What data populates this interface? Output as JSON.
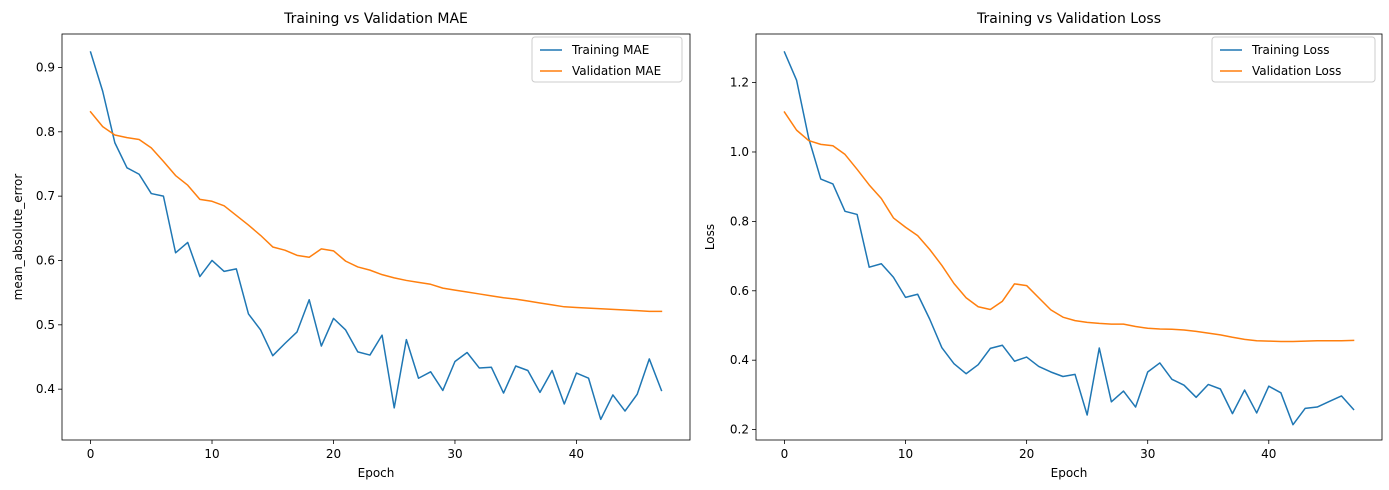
{
  "chart_data": [
    {
      "type": "line",
      "title": "Training vs Validation MAE",
      "xlabel": "Epoch",
      "ylabel": "mean_absolute_error",
      "xlim": [
        -2.35,
        49.35
      ],
      "ylim": [
        0.321,
        0.952
      ],
      "xticks": [
        0,
        10,
        20,
        30,
        40
      ],
      "yticks": [
        0.4,
        0.5,
        0.6,
        0.7,
        0.8,
        0.9
      ],
      "ytick_labels": [
        "0.4",
        "0.5",
        "0.6",
        "0.7",
        "0.8",
        "0.9"
      ],
      "grid": false,
      "legend_position": "top-right",
      "x": [
        0,
        1,
        2,
        3,
        4,
        5,
        6,
        7,
        8,
        9,
        10,
        11,
        12,
        13,
        14,
        15,
        16,
        17,
        18,
        19,
        20,
        21,
        22,
        23,
        24,
        25,
        26,
        27,
        28,
        29,
        30,
        31,
        32,
        33,
        34,
        35,
        36,
        37,
        38,
        39,
        40,
        41,
        42,
        43,
        44,
        45,
        46,
        47
      ],
      "series": [
        {
          "name": "Training MAE",
          "color": "#1f77b4",
          "values": [
            0.924,
            0.863,
            0.783,
            0.744,
            0.734,
            0.704,
            0.7,
            0.612,
            0.628,
            0.575,
            0.6,
            0.583,
            0.587,
            0.517,
            0.492,
            0.452,
            0.471,
            0.489,
            0.539,
            0.467,
            0.51,
            0.492,
            0.458,
            0.453,
            0.484,
            0.371,
            0.477,
            0.417,
            0.427,
            0.398,
            0.443,
            0.457,
            0.433,
            0.434,
            0.394,
            0.436,
            0.429,
            0.395,
            0.429,
            0.377,
            0.425,
            0.417,
            0.353,
            0.391,
            0.366,
            0.392,
            0.447,
            0.398
          ]
        },
        {
          "name": "Validation MAE",
          "color": "#ff7f0e",
          "values": [
            0.831,
            0.808,
            0.795,
            0.791,
            0.788,
            0.775,
            0.754,
            0.732,
            0.717,
            0.695,
            0.692,
            0.685,
            0.67,
            0.655,
            0.639,
            0.621,
            0.616,
            0.608,
            0.605,
            0.618,
            0.615,
            0.599,
            0.59,
            0.585,
            0.578,
            0.573,
            0.569,
            0.566,
            0.563,
            0.557,
            0.554,
            0.551,
            0.548,
            0.545,
            0.542,
            0.54,
            0.537,
            0.534,
            0.531,
            0.528,
            0.527,
            0.526,
            0.525,
            0.524,
            0.523,
            0.522,
            0.521,
            0.521
          ]
        }
      ]
    },
    {
      "type": "line",
      "title": "Training vs Validation Loss",
      "xlabel": "Epoch",
      "ylabel": "Loss",
      "xlim": [
        -2.35,
        49.35
      ],
      "ylim": [
        0.17,
        1.34
      ],
      "xticks": [
        0,
        10,
        20,
        30,
        40
      ],
      "yticks": [
        0.2,
        0.4,
        0.6,
        0.8,
        1.0,
        1.2
      ],
      "ytick_labels": [
        "0.2",
        "0.4",
        "0.6",
        "0.8",
        "1.0",
        "1.2"
      ],
      "grid": false,
      "legend_position": "top-right",
      "x": [
        0,
        1,
        2,
        3,
        4,
        5,
        6,
        7,
        8,
        9,
        10,
        11,
        12,
        13,
        14,
        15,
        16,
        17,
        18,
        19,
        20,
        21,
        22,
        23,
        24,
        25,
        26,
        27,
        28,
        29,
        30,
        31,
        32,
        33,
        34,
        35,
        36,
        37,
        38,
        39,
        40,
        41,
        42,
        43,
        44,
        45,
        46,
        47
      ],
      "series": [
        {
          "name": "Training Loss",
          "color": "#1f77b4",
          "values": [
            1.288,
            1.207,
            1.04,
            0.922,
            0.908,
            0.829,
            0.82,
            0.668,
            0.678,
            0.639,
            0.581,
            0.59,
            0.518,
            0.436,
            0.39,
            0.361,
            0.387,
            0.434,
            0.443,
            0.397,
            0.409,
            0.382,
            0.366,
            0.353,
            0.359,
            0.242,
            0.435,
            0.28,
            0.311,
            0.265,
            0.366,
            0.392,
            0.345,
            0.328,
            0.293,
            0.33,
            0.317,
            0.246,
            0.314,
            0.248,
            0.325,
            0.306,
            0.214,
            0.261,
            0.265,
            0.281,
            0.297,
            0.258
          ]
        },
        {
          "name": "Validation Loss",
          "color": "#ff7f0e",
          "values": [
            1.115,
            1.063,
            1.033,
            1.022,
            1.018,
            0.993,
            0.95,
            0.905,
            0.866,
            0.81,
            0.783,
            0.759,
            0.719,
            0.673,
            0.621,
            0.58,
            0.554,
            0.546,
            0.57,
            0.62,
            0.615,
            0.58,
            0.545,
            0.524,
            0.514,
            0.509,
            0.506,
            0.504,
            0.504,
            0.497,
            0.492,
            0.49,
            0.489,
            0.487,
            0.483,
            0.478,
            0.473,
            0.466,
            0.46,
            0.456,
            0.455,
            0.454,
            0.454,
            0.455,
            0.456,
            0.456,
            0.456,
            0.457
          ]
        }
      ]
    }
  ]
}
